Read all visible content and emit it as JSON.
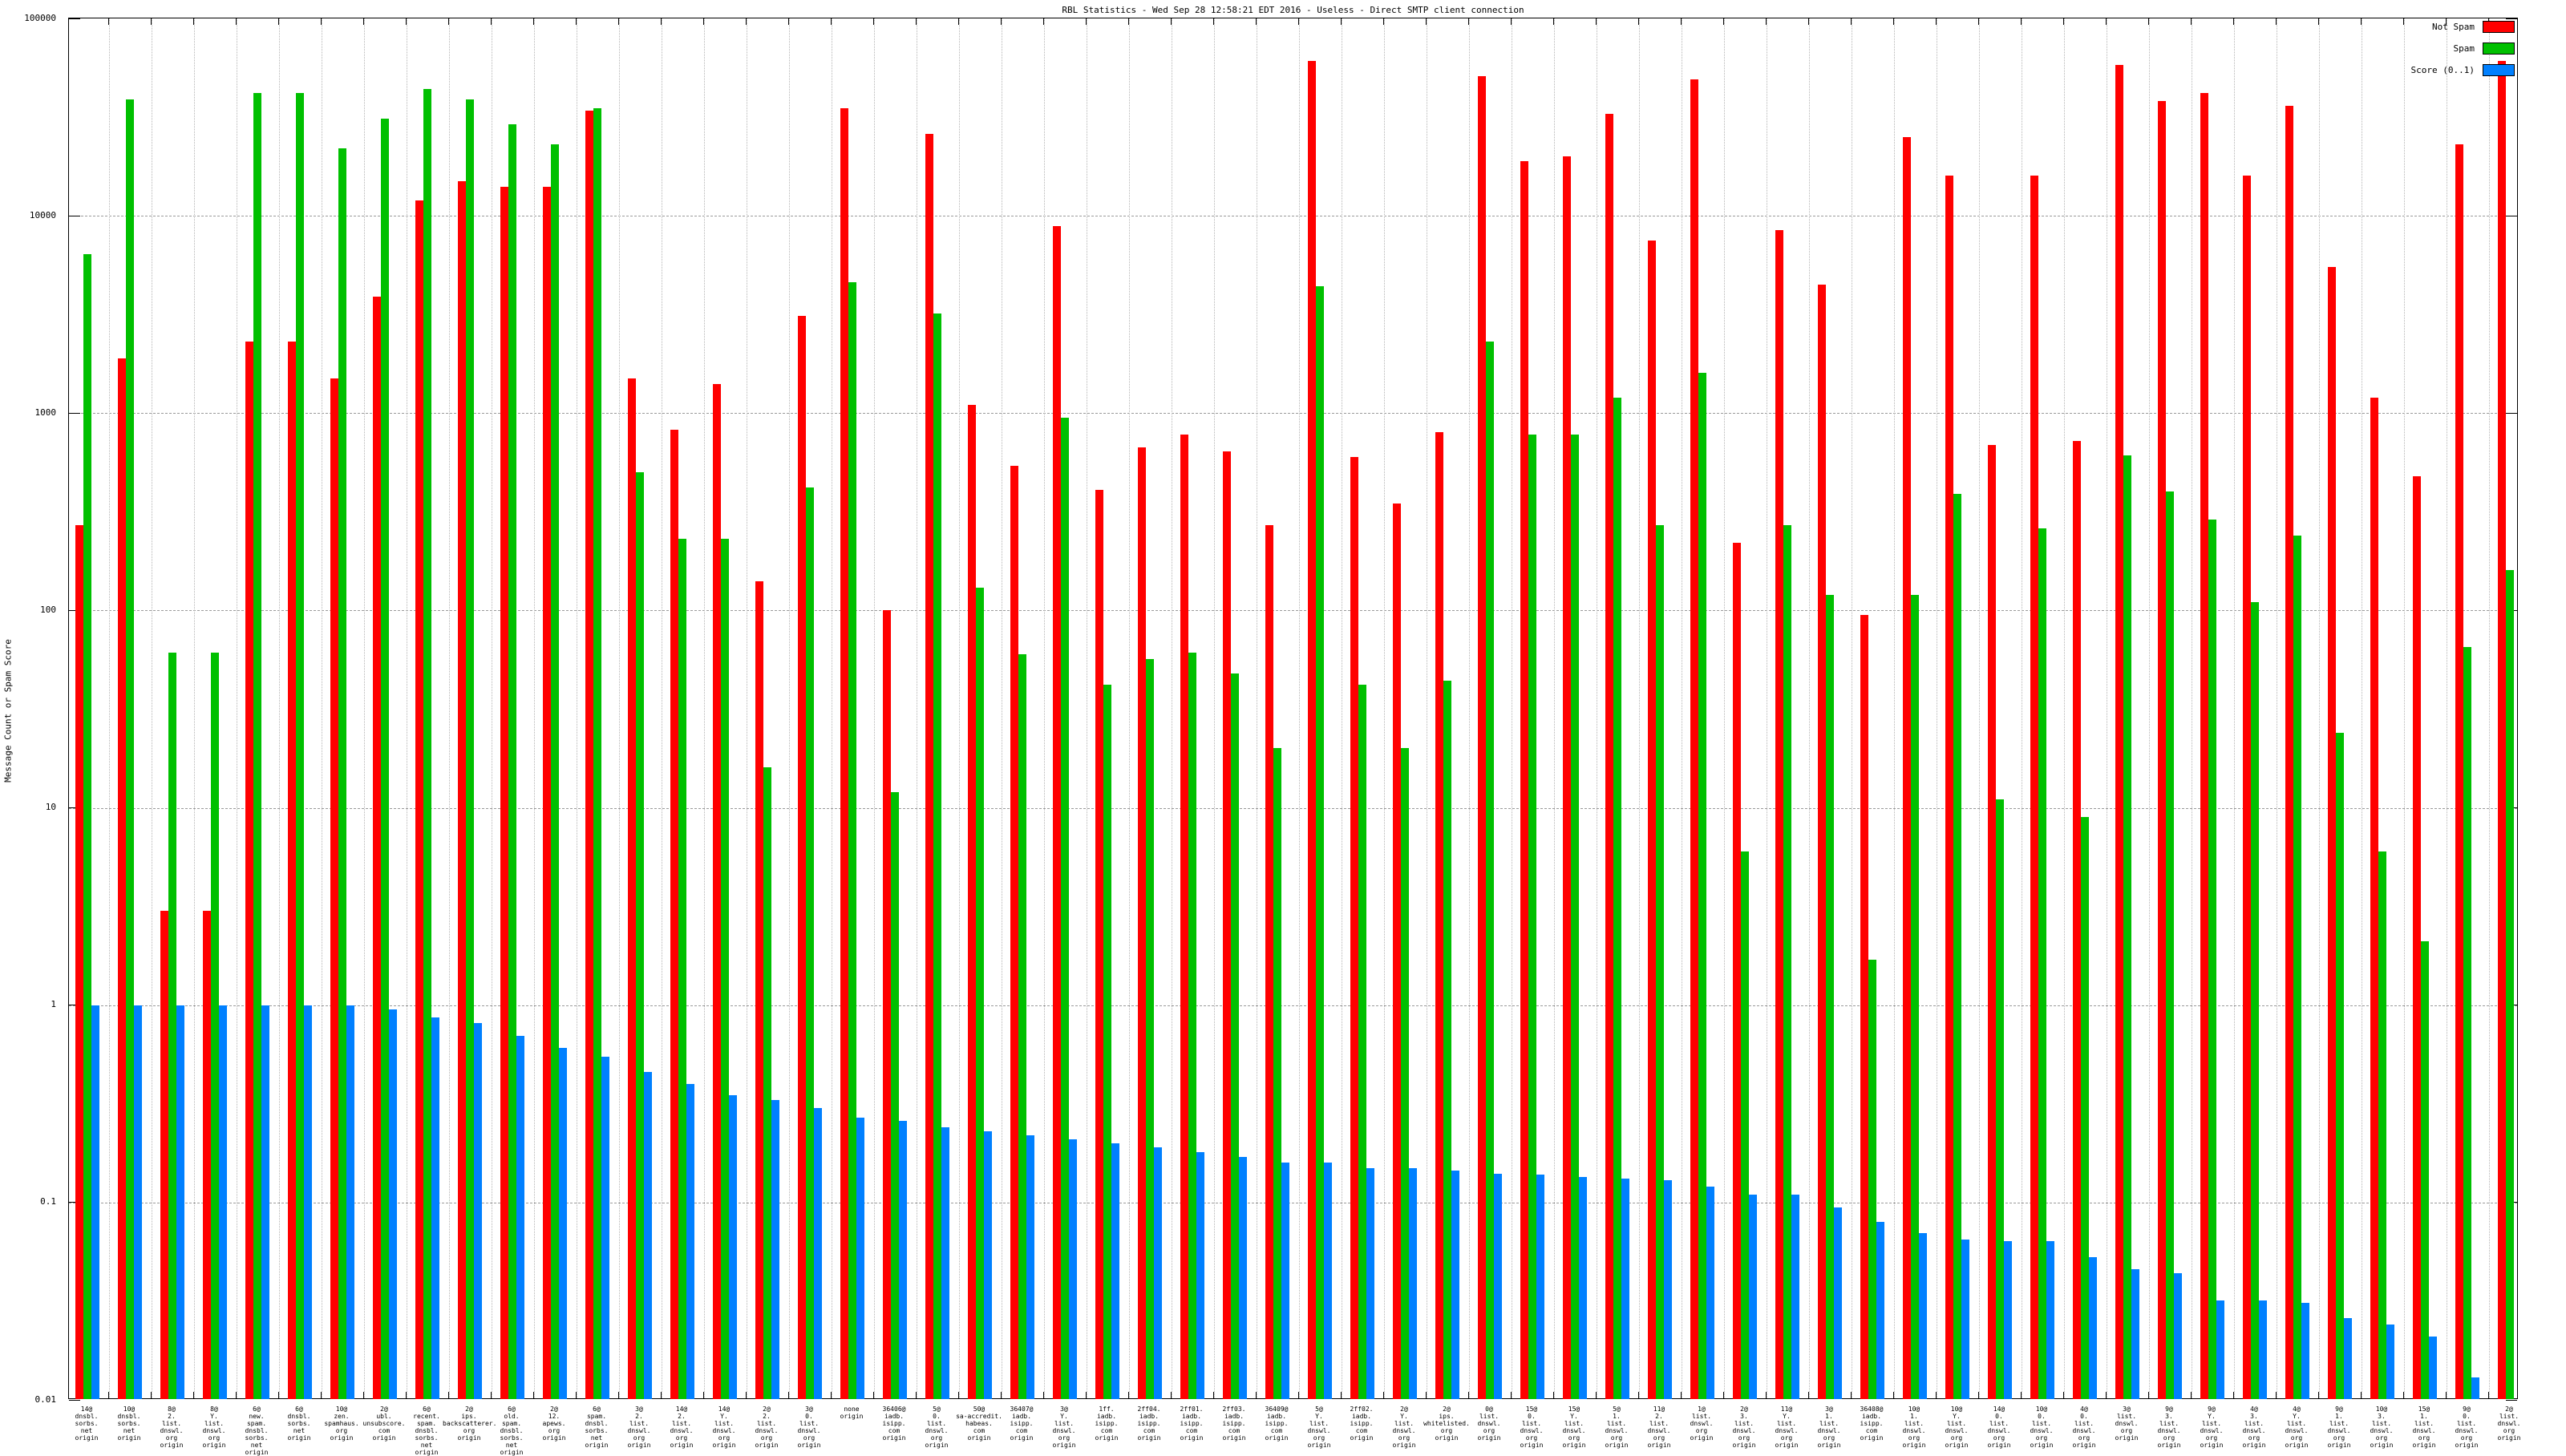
{
  "chart_data": {
    "type": "bar",
    "title": "RBL Statistics - Wed Sep 28 12:58:21 EDT 2016 - Useless - Direct SMTP client connection",
    "xlabel": "",
    "ylabel": "Message Count or Spam Score",
    "yscale": "log",
    "ylim": [
      0.01,
      100000
    ],
    "ytick_labels": [
      "100000",
      "10000",
      "1000",
      "100",
      "10",
      "1",
      "0.1",
      "0.01"
    ],
    "grid": true,
    "legend_position": "top-right",
    "categories": [
      "14@ dnsbl. sorbs. net origin",
      "10@ dnsbl. sorbs. net origin",
      "8@ 2. list. dnswl. org origin",
      "8@ Y. list. dnswl. org origin",
      "6@ new. spam. dnsbl. sorbs. net origin",
      "6@ dnsbl. sorbs. net origin",
      "10@ zen. spamhaus. org origin",
      "2@ ubl. unsubscore. com origin",
      "6@ recent. spam. dnsbl. sorbs. net origin",
      "2@ ips. backscatterer. org origin",
      "6@ old. spam. dnsbl. sorbs. net origin",
      "2@ 12. apews. org origin",
      "6@ spam. dnsbl. sorbs. net origin",
      "3@ 2. list. dnswl. org origin",
      "14@ 2. list. dnswl. org origin",
      "14@ Y. list. dnswl. org origin",
      "2@ 2. list. dnswl. org origin",
      "3@ 0. list. dnswl. org origin",
      "none origin",
      "36406@ iadb. isipp. com origin",
      "5@ 0. list. dnswl. org origin",
      "50@ sa-accredit. habeas. com origin",
      "36407@ iadb. isipp. com origin",
      "3@ Y. list. dnswl. org origin",
      "1ff. iadb. isipp. com origin",
      "2ff04. iadb. isipp. com origin",
      "2ff01. iadb. isipp. com origin",
      "2ff03. iadb. isipp. com origin",
      "36409@ iadb. isipp. com origin",
      "5@ Y. list. dnswl. org origin",
      "2ff02. iadb. isipp. com origin",
      "2@ Y. list. dnswl. org origin",
      "2@ ips. whitelisted. org origin",
      "0@ list. dnswl. org origin",
      "15@ 0. list. dnswl. org origin",
      "15@ Y. list. dnswl. org origin",
      "5@ 1. list. dnswl. org origin",
      "11@ 2. list. dnswl. org origin",
      "1@ list. dnswl. org origin",
      "2@ 3. list. dnswl. org origin",
      "11@ Y. list. dnswl. org origin",
      "3@ 1. list. dnswl. org origin",
      "36408@ iadb. isipp. com origin",
      "10@ 1. list. dnswl. org origin",
      "10@ Y. list. dnswl. org origin",
      "14@ 0. list. dnswl. org origin",
      "10@ 0. list. dnswl. org origin",
      "4@ 0. list. dnswl. org origin",
      "3@ list. dnswl. org origin",
      "9@ 3. list. dnswl. org origin",
      "9@ Y. list. dnswl. org origin",
      "4@ 3. list. dnswl. org origin",
      "4@ Y. list. dnswl. org origin",
      "9@ 1. list. dnswl. org origin",
      "10@ 3. list. dnswl. org origin",
      "15@ 1. list. dnswl. org origin",
      "9@ 0. list. dnswl. org origin",
      "2@ list. dnswl. org origin"
    ],
    "series": [
      {
        "name": "Not Spam",
        "color": "#ff0000",
        "values": [
          270,
          1900,
          3,
          3,
          2300,
          2300,
          1500,
          3900,
          12000,
          15000,
          14000,
          14000,
          34000,
          1500,
          820,
          1400,
          140,
          3100,
          35000,
          100,
          26000,
          1100,
          540,
          8900,
          410,
          670,
          780,
          640,
          270,
          61000,
          600,
          350,
          800,
          51000,
          19000,
          20000,
          33000,
          7500,
          49000,
          220,
          8500,
          4500,
          95,
          25000,
          16000,
          690,
          16000,
          720,
          58000,
          38000,
          42000,
          16000,
          36000,
          5500,
          1200,
          480,
          23000,
          61000
        ]
      },
      {
        "name": "Spam",
        "color": "#00c000",
        "values": [
          6400,
          39000,
          61,
          61,
          42000,
          42000,
          22000,
          31000,
          44000,
          39000,
          29000,
          23000,
          35000,
          500,
          230,
          230,
          16,
          420,
          4600,
          12,
          3200,
          130,
          60,
          950,
          42,
          57,
          61,
          48,
          20,
          4400,
          42,
          20,
          44,
          2300,
          780,
          780,
          1200,
          270,
          1600,
          6,
          270,
          120,
          1.7,
          120,
          390,
          11,
          260,
          9,
          610,
          400,
          290,
          110,
          240,
          24,
          6,
          2.1,
          65,
          160
        ]
      },
      {
        "name": "Score (0..1)",
        "color": "#0080ff",
        "values": [
          1.0,
          1.0,
          1.0,
          1.0,
          1.0,
          1.0,
          1.0,
          0.95,
          0.87,
          0.81,
          0.7,
          0.61,
          0.55,
          0.46,
          0.4,
          0.35,
          0.33,
          0.3,
          0.27,
          0.26,
          0.24,
          0.23,
          0.22,
          0.21,
          0.2,
          0.19,
          0.18,
          0.17,
          0.16,
          0.16,
          0.15,
          0.15,
          0.145,
          0.14,
          0.138,
          0.135,
          0.132,
          0.13,
          0.12,
          0.11,
          0.11,
          0.094,
          0.08,
          0.07,
          0.065,
          0.064,
          0.064,
          0.053,
          0.046,
          0.044,
          0.032,
          0.032,
          0.031,
          0.026,
          0.024,
          0.021,
          0.013,
          null
        ]
      }
    ]
  }
}
